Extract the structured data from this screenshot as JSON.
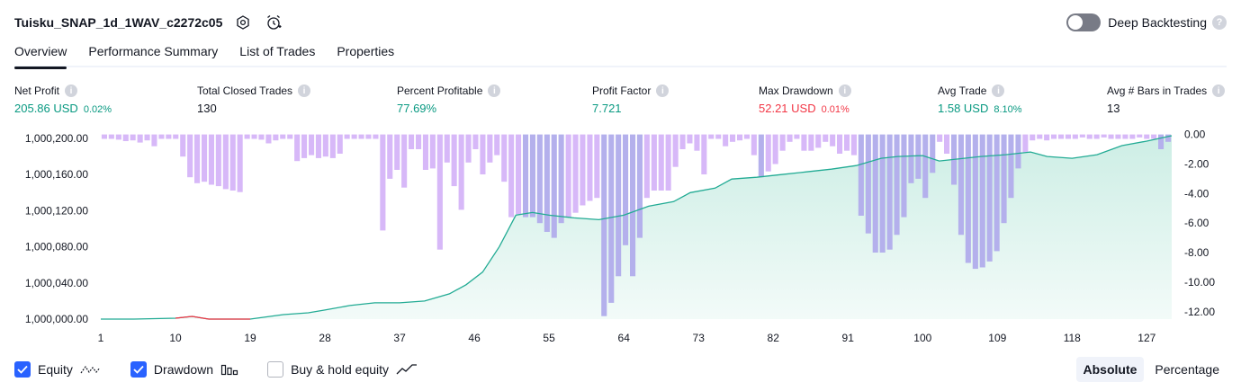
{
  "header": {
    "title": "Tuisku_SNAP_1d_1WAV_c2272c05",
    "icons": [
      "settings-icon",
      "alarm-add-icon"
    ]
  },
  "deep_backtesting": {
    "label": "Deep Backtesting",
    "enabled": false,
    "help": "?"
  },
  "tabs": [
    {
      "label": "Overview",
      "active": true
    },
    {
      "label": "Performance Summary",
      "active": false
    },
    {
      "label": "List of Trades",
      "active": false
    },
    {
      "label": "Properties",
      "active": false
    }
  ],
  "metrics": [
    {
      "label": "Net Profit",
      "value": "205.86 USD",
      "pct": "0.02%",
      "tone": "pos",
      "info": "i"
    },
    {
      "label": "Total Closed Trades",
      "value": "130",
      "pct": "",
      "tone": "neu",
      "info": "i"
    },
    {
      "label": "Percent Profitable",
      "value": "77.69%",
      "pct": "",
      "tone": "pos",
      "info": "i"
    },
    {
      "label": "Profit Factor",
      "value": "7.721",
      "pct": "",
      "tone": "pos",
      "info": "i"
    },
    {
      "label": "Max Drawdown",
      "value": "52.21 USD",
      "pct": "0.01%",
      "tone": "neg",
      "info": "i"
    },
    {
      "label": "Avg Trade",
      "value": "1.58 USD",
      "pct": "8.10%",
      "tone": "pos",
      "info": "i"
    },
    {
      "label": "Avg # Bars in Trades",
      "value": "13",
      "pct": "",
      "tone": "neu",
      "info": "i"
    }
  ],
  "legend": [
    {
      "label": "Equity",
      "checked": true,
      "icon": "equity-line-icon"
    },
    {
      "label": "Drawdown",
      "checked": true,
      "icon": "drawdown-bars-icon"
    },
    {
      "label": "Buy & hold equity",
      "checked": false,
      "icon": "buy-hold-line-icon"
    }
  ],
  "mode": {
    "absolute_label": "Absolute",
    "percentage_label": "Percentage",
    "selected": "Absolute"
  },
  "colors": {
    "equity_line": "#22ab94",
    "equity_fill": "#cdeee5",
    "equity_loss_line": "#f23645",
    "drawdown_bar": "#d7b8f8",
    "drawdown_bar_overlap": "#b4b0ec",
    "accent": "#2962ff"
  },
  "chart_data": {
    "type": "area",
    "x_ticks": [
      "1",
      "10",
      "19",
      "28",
      "37",
      "46",
      "55",
      "64",
      "73",
      "82",
      "91",
      "100",
      "109",
      "118",
      "127"
    ],
    "left_axis": {
      "ticks": [
        "1,000,000.00",
        "1,000,040.00",
        "1,000,080.00",
        "1,000,120.00",
        "1,000,160.00",
        "1,000,200.00"
      ],
      "range": [
        1000000,
        1000200
      ]
    },
    "right_axis": {
      "ticks": [
        "0.00",
        "-2.00",
        "-4.00",
        "-6.00",
        "-8.00",
        "-10.00",
        "-12.00"
      ],
      "range": [
        -12.5,
        0.1
      ]
    },
    "series": [
      {
        "key": "equity",
        "x": [
          1,
          5,
          10,
          12,
          14,
          19,
          23,
          26,
          28,
          31,
          34,
          37,
          40,
          43,
          45,
          47,
          49,
          51,
          53,
          55,
          58,
          61,
          64,
          67,
          70,
          72,
          75,
          77,
          80,
          83,
          86,
          89,
          92,
          95,
          97,
          100,
          102,
          105,
          107,
          110,
          113,
          115,
          118,
          121,
          124,
          127,
          130
        ],
        "values": [
          1000000,
          1000000,
          1000001,
          1000003,
          1000000,
          1000000,
          1000005,
          1000007,
          1000010,
          1000015,
          1000018,
          1000018,
          1000020,
          1000028,
          1000038,
          1000052,
          1000080,
          1000115,
          1000118,
          1000115,
          1000112,
          1000110,
          1000115,
          1000125,
          1000130,
          1000140,
          1000145,
          1000155,
          1000157,
          1000160,
          1000163,
          1000166,
          1000170,
          1000178,
          1000180,
          1000181,
          1000175,
          1000178,
          1000180,
          1000182,
          1000185,
          1000180,
          1000178,
          1000182,
          1000192,
          1000197,
          1000203
        ]
      },
      {
        "key": "drawdown",
        "values": [
          -0.3,
          -0.3,
          -0.35,
          -0.45,
          -0.4,
          -0.55,
          -0.4,
          -0.8,
          -0.3,
          -0.3,
          -0.3,
          -1.5,
          -2.9,
          -3.3,
          -3.2,
          -3.4,
          -3.5,
          -3.7,
          -3.8,
          -3.9,
          -0.3,
          -0.3,
          -0.35,
          -0.6,
          -0.4,
          -0.3,
          -0.3,
          -1.8,
          -1.6,
          -1.4,
          -1.6,
          -1.5,
          -1.6,
          -1.3,
          -0.3,
          -0.3,
          -0.3,
          -0.3,
          -0.3,
          -6.5,
          -3.0,
          -2.4,
          -3.6,
          -1.0,
          -1.0,
          -2.4,
          -2.3,
          -7.8,
          -1.9,
          -3.5,
          -5.1,
          -1.9,
          -1.0,
          -2.7,
          -1.9,
          -1.4,
          -3.2,
          -5.6,
          -5.4,
          -5.6,
          -5.6,
          -6.0,
          -6.6,
          -7.0,
          -6.0,
          -5.6,
          -5.3,
          -4.8,
          -4.5,
          -4.3,
          -12.3,
          -11.4,
          -9.6,
          -7.5,
          -9.6,
          -7.0,
          -4.3,
          -3.8,
          -3.8,
          -3.8,
          -2.2,
          -1.0,
          -0.6,
          -1.1,
          -2.7,
          -0.3,
          -0.3,
          -0.8,
          -0.5,
          -0.4,
          -0.3,
          -1.4,
          -2.9,
          -2.5,
          -2.0,
          -1.1,
          -0.5,
          -0.3,
          -1.1,
          -1.1,
          -0.9,
          -0.5,
          -0.8,
          -1.3,
          -1.1,
          -1.4,
          -5.5,
          -6.7,
          -8.0,
          -8.0,
          -7.8,
          -6.8,
          -5.6,
          -3.3,
          -3.0,
          -4.3,
          -2.6,
          -0.5,
          -1.3,
          -3.4,
          -6.8,
          -8.7,
          -9.1,
          -9.0,
          -8.6,
          -7.9,
          -6.0,
          -4.3,
          -2.3,
          -1.2,
          -0.4,
          -0.3,
          -0.4,
          -0.3,
          -0.3,
          -0.3,
          -0.3,
          -0.2,
          -0.3,
          -0.3,
          -0.2,
          -0.3,
          -0.3,
          -0.3,
          -0.3,
          -0.2,
          -0.3,
          -0.3,
          -1.0,
          -0.5
        ]
      }
    ]
  }
}
